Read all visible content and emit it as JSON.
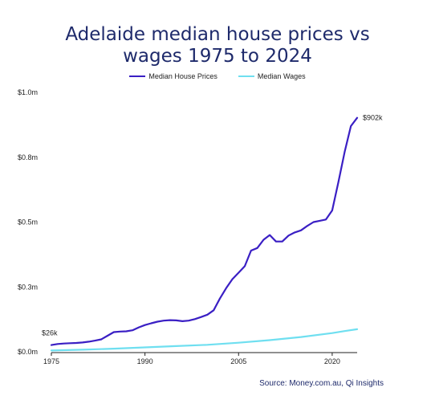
{
  "chart_data": {
    "type": "line",
    "title_line1": "Adelaide median house prices vs",
    "title_line2": "wages 1975 to 2024",
    "xlabel": "",
    "ylabel": "",
    "x_ticks": [
      "1975",
      "1990",
      "2005",
      "2020"
    ],
    "y_ticks": [
      "$0.0m",
      "$0.3m",
      "$0.5m",
      "$0.8m",
      "$1.0m"
    ],
    "ylim": [
      0,
      1000000
    ],
    "xlim": [
      1975,
      2024
    ],
    "grid": false,
    "legend_position": "top-center",
    "annotations": {
      "start_label": "$26k",
      "end_label": "$902k"
    },
    "source": "Source: Money.com.au, Qi Insights",
    "series": [
      {
        "name": "Median House Prices",
        "color": "#3a1fc4",
        "x": [
          1975,
          1976,
          1977,
          1978,
          1979,
          1980,
          1981,
          1982,
          1983,
          1984,
          1985,
          1986,
          1987,
          1988,
          1989,
          1990,
          1991,
          1992,
          1993,
          1994,
          1995,
          1996,
          1997,
          1998,
          1999,
          2000,
          2001,
          2002,
          2003,
          2004,
          2005,
          2006,
          2007,
          2008,
          2009,
          2010,
          2011,
          2012,
          2013,
          2014,
          2015,
          2016,
          2017,
          2018,
          2019,
          2020,
          2021,
          2022,
          2023,
          2024
        ],
        "values": [
          26000,
          30000,
          32000,
          33000,
          34000,
          36000,
          39000,
          43000,
          48000,
          62000,
          76000,
          78000,
          79000,
          83000,
          94000,
          103000,
          110000,
          116000,
          120000,
          122000,
          121000,
          118000,
          120000,
          126000,
          134000,
          143000,
          160000,
          205000,
          245000,
          280000,
          305000,
          330000,
          390000,
          400000,
          432000,
          450000,
          425000,
          425000,
          448000,
          460000,
          468000,
          485000,
          500000,
          505000,
          510000,
          545000,
          655000,
          770000,
          870000,
          902000
        ]
      },
      {
        "name": "Median Wages",
        "color": "#6fdff0",
        "x": [
          1975,
          1980,
          1985,
          1990,
          1995,
          2000,
          2005,
          2010,
          2015,
          2020,
          2022,
          2024
        ],
        "values": [
          5000,
          8000,
          12000,
          17000,
          22000,
          27000,
          35000,
          45000,
          57000,
          72000,
          80000,
          87000
        ]
      }
    ]
  }
}
